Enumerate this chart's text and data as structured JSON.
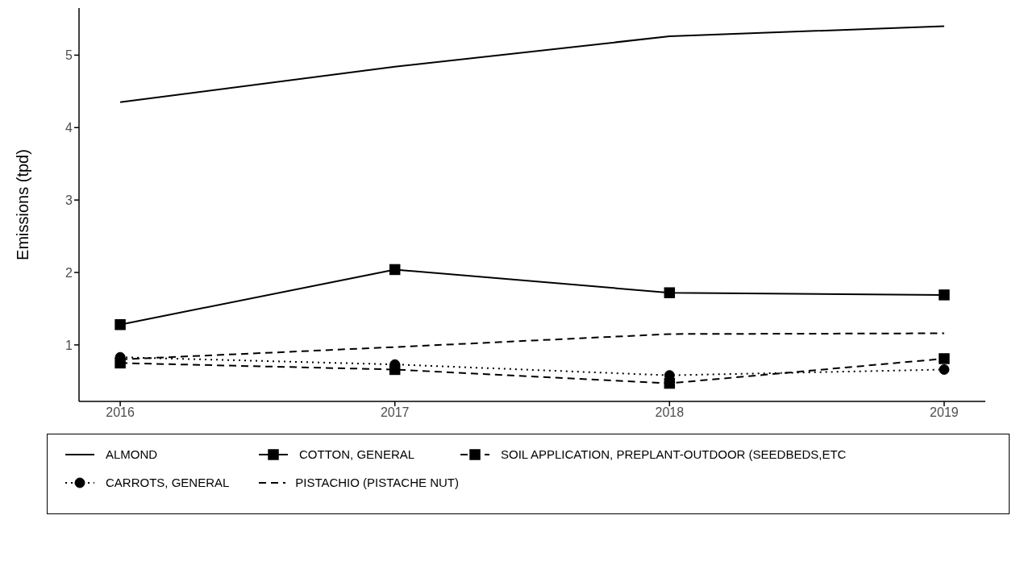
{
  "chart_data": {
    "type": "line",
    "ylabel": "Emissions (tpd)",
    "x": [
      2016,
      2017,
      2018,
      2019
    ],
    "xlim": [
      2015.85,
      2019.15
    ],
    "xticks": [
      2016,
      2017,
      2018,
      2019
    ],
    "ylim": [
      0.22,
      5.65
    ],
    "yticks": [
      1,
      2,
      3,
      4,
      5
    ],
    "legend": "bottom",
    "series": [
      {
        "name": "ALMOND",
        "color": "#000000",
        "values": [
          4.35,
          4.84,
          5.26,
          5.4
        ],
        "marker": "none",
        "line_style": "solid"
      },
      {
        "name": "COTTON, GENERAL",
        "color": "#000000",
        "values": [
          1.28,
          2.04,
          1.72,
          1.69
        ],
        "marker": "square",
        "line_style": "solid"
      },
      {
        "name": "SOIL APPLICATION, PREPLANT-OUTDOOR (SEEDBEDS,ETC",
        "color": "#000000",
        "values": [
          0.75,
          0.66,
          0.47,
          0.81
        ],
        "marker": "square",
        "line_style": "dashed"
      },
      {
        "name": "CARROTS, GENERAL",
        "color": "#000000",
        "values": [
          0.83,
          0.73,
          0.58,
          0.66
        ],
        "marker": "circle",
        "line_style": "dotted"
      },
      {
        "name": "PISTACHIO (PISTACHE NUT)",
        "color": "#000000",
        "values": [
          0.8,
          0.97,
          1.15,
          1.16
        ],
        "marker": "none",
        "line_style": "dashed"
      }
    ]
  }
}
